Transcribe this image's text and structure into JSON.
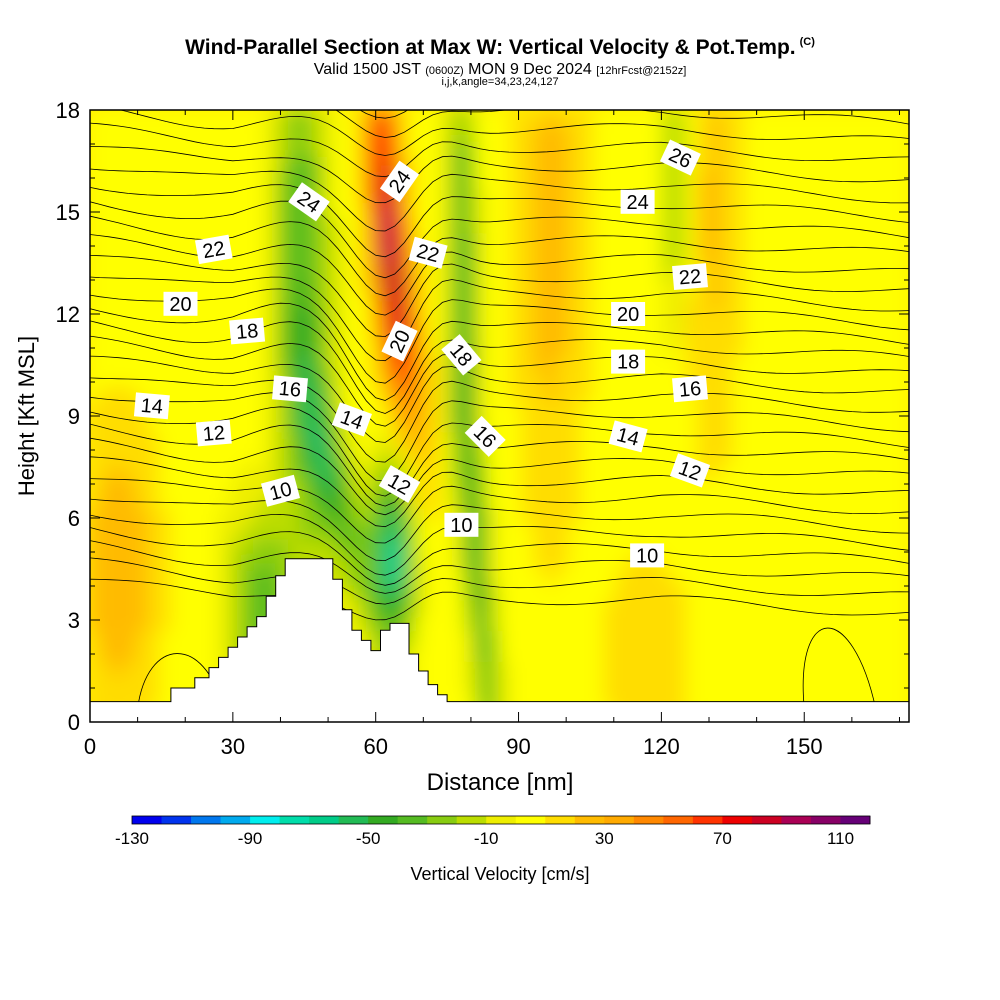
{
  "header": {
    "title": "Wind-Parallel Section at Max W: Vertical Velocity & Pot.Temp.",
    "copyright": "(C)",
    "valid_prefix": "Valid 1500 JST",
    "valid_utc": "(0600Z)",
    "valid_date": "MON 9 Dec 2024",
    "forecast": "[12hrFcst@2152z]",
    "params": "i,j,k,angle=34,23,24,127"
  },
  "chart_data": {
    "type": "contour",
    "title": "Wind-Parallel Section at Max W: Vertical Velocity & Pot.Temp.",
    "xlabel": "Distance [nm]",
    "ylabel": "Height [Kft MSL]",
    "xlim": [
      0,
      172
    ],
    "ylim": [
      0,
      18
    ],
    "xticks": [
      0,
      30,
      60,
      90,
      120,
      150
    ],
    "yticks": [
      0,
      3,
      6,
      9,
      12,
      15,
      18
    ],
    "colorbar": {
      "label": "Vertical Velocity [cm/s]",
      "ticks": [
        -130,
        -90,
        -50,
        -10,
        30,
        70,
        110
      ],
      "levels": [
        -130,
        -120,
        -110,
        -100,
        -90,
        -80,
        -70,
        -60,
        -50,
        -40,
        -30,
        -20,
        -10,
        0,
        10,
        20,
        30,
        40,
        50,
        60,
        70,
        80,
        90,
        100,
        110,
        120
      ],
      "colors": [
        "#0000ee",
        "#0033ee",
        "#0077ee",
        "#00aaee",
        "#00eeee",
        "#00ddaa",
        "#00cc88",
        "#22bb55",
        "#33aa22",
        "#55bb22",
        "#88cc11",
        "#bbdd00",
        "#eeee00",
        "#ffff00",
        "#ffdd00",
        "#ffbb00",
        "#ffaa00",
        "#ff8800",
        "#ff6600",
        "#ff3300",
        "#ee0000",
        "#cc0022",
        "#aa0055",
        "#880066",
        "#660077"
      ]
    },
    "theta_labels": [
      {
        "v": "26",
        "x": 124,
        "y": 16.6,
        "r": 25
      },
      {
        "v": "24",
        "x": 46,
        "y": 15.3,
        "r": 35
      },
      {
        "v": "24",
        "x": 65,
        "y": 15.9,
        "r": -55
      },
      {
        "v": "24",
        "x": 115,
        "y": 15.3,
        "r": 0
      },
      {
        "v": "22",
        "x": 26,
        "y": 13.9,
        "r": -10
      },
      {
        "v": "22",
        "x": 71,
        "y": 13.8,
        "r": 15
      },
      {
        "v": "22",
        "x": 126,
        "y": 13.1,
        "r": -5
      },
      {
        "v": "20",
        "x": 19,
        "y": 12.3,
        "r": 0
      },
      {
        "v": "20",
        "x": 65,
        "y": 11.2,
        "r": -65
      },
      {
        "v": "20",
        "x": 113,
        "y": 12.0,
        "r": 0
      },
      {
        "v": "18",
        "x": 33,
        "y": 11.5,
        "r": -5
      },
      {
        "v": "18",
        "x": 78,
        "y": 10.8,
        "r": 50
      },
      {
        "v": "18",
        "x": 113,
        "y": 10.6,
        "r": 0
      },
      {
        "v": "16",
        "x": 42,
        "y": 9.8,
        "r": 5
      },
      {
        "v": "16",
        "x": 83,
        "y": 8.4,
        "r": 45
      },
      {
        "v": "16",
        "x": 126,
        "y": 9.8,
        "r": -5
      },
      {
        "v": "14",
        "x": 13,
        "y": 9.3,
        "r": 5
      },
      {
        "v": "14",
        "x": 55,
        "y": 8.9,
        "r": 20
      },
      {
        "v": "14",
        "x": 113,
        "y": 8.4,
        "r": 15
      },
      {
        "v": "12",
        "x": 26,
        "y": 8.5,
        "r": -5
      },
      {
        "v": "12",
        "x": 65,
        "y": 7.0,
        "r": 30
      },
      {
        "v": "12",
        "x": 126,
        "y": 7.4,
        "r": 20
      },
      {
        "v": "10",
        "x": 40,
        "y": 6.8,
        "r": -15
      },
      {
        "v": "10",
        "x": 78,
        "y": 5.8,
        "r": 0
      },
      {
        "v": "10",
        "x": 117,
        "y": 4.9,
        "r": 0
      }
    ],
    "terrain_top_kft": [
      0.6,
      0.6,
      0.6,
      0.6,
      0.6,
      0.6,
      0.6,
      0.6,
      0.6,
      0.6,
      0.6,
      0.6,
      0.6,
      0.6,
      0.6,
      0.6,
      0.6,
      1.0,
      1.0,
      1.0,
      1.0,
      1.0,
      1.3,
      1.3,
      1.3,
      1.6,
      1.6,
      1.9,
      1.9,
      2.2,
      2.2,
      2.5,
      2.5,
      2.8,
      2.8,
      3.1,
      3.1,
      3.7,
      3.7,
      4.3,
      4.3,
      4.8,
      4.8,
      4.8,
      4.8,
      4.8,
      4.8,
      4.8,
      4.8,
      4.8,
      4.8,
      4.2,
      4.2,
      3.3,
      3.3,
      2.7,
      2.7,
      2.4,
      2.4,
      2.1,
      2.1,
      2.7,
      2.7,
      2.9,
      2.9,
      2.9,
      2.9,
      2.0,
      2.0,
      1.5,
      1.5,
      1.1,
      1.1,
      0.8,
      0.8,
      0.6,
      0.6,
      0.6,
      0.6,
      0.6,
      0.6,
      0.6,
      0.6,
      0.6,
      0.6,
      0.6,
      0.6,
      0.6,
      0.6,
      0.6,
      0.6,
      0.6,
      0.6,
      0.6,
      0.6,
      0.6,
      0.6,
      0.6,
      0.6,
      0.6,
      0.6,
      0.6,
      0.6,
      0.6,
      0.6,
      0.6,
      0.6,
      0.6,
      0.6,
      0.6,
      0.6,
      0.6,
      0.6,
      0.6,
      0.6,
      0.6,
      0.6,
      0.6,
      0.6,
      0.6,
      0.6,
      0.6,
      0.6,
      0.6,
      0.6,
      0.6,
      0.6,
      0.6,
      0.6,
      0.6,
      0.6,
      0.6,
      0.6,
      0.6,
      0.6,
      0.6,
      0.6,
      0.6,
      0.6,
      0.6,
      0.6,
      0.6,
      0.6,
      0.6,
      0.6,
      0.6,
      0.6,
      0.6,
      0.6,
      0.6,
      0.6,
      0.6,
      0.6,
      0.6,
      0.6,
      0.6,
      0.6,
      0.6,
      0.6,
      0.6,
      0.6,
      0.6,
      0.6,
      0.6,
      0.6,
      0.6,
      0.6,
      0.6,
      0.6,
      0.6,
      0.6,
      0.6
    ]
  }
}
